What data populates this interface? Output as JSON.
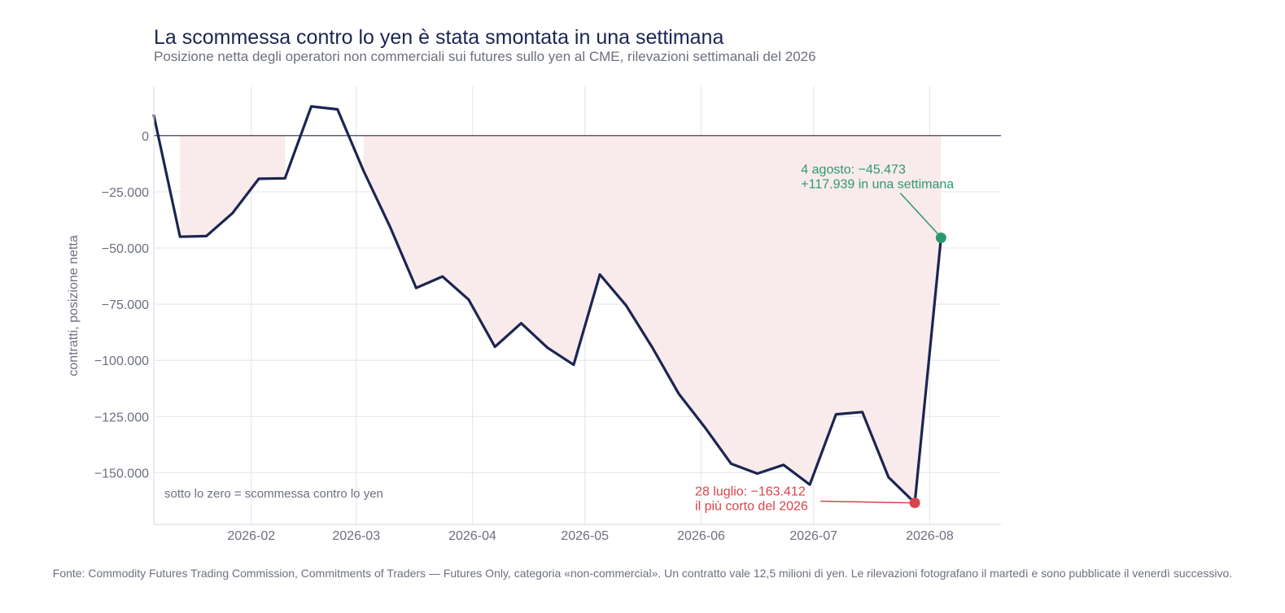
{
  "chart_data": {
    "type": "area",
    "title": "La scommessa contro lo yen è stata smontata in una settimana",
    "subtitle": "Posizione netta degli operatori non commerciali sui futures sullo yen al CME, rilevazioni settimanali del 2026",
    "ylabel": "contratti, posizione netta",
    "xlabel": "",
    "ylim": [
      -173000,
      22000
    ],
    "xlim": [
      "2026-01-06",
      "2026-08-20"
    ],
    "grid": true,
    "x_ticks": [
      "2026-02-01",
      "2026-03-01",
      "2026-04-01",
      "2026-05-01",
      "2026-06-01",
      "2026-07-01",
      "2026-08-01"
    ],
    "x_tick_labels": [
      "2026-02",
      "2026-03",
      "2026-04",
      "2026-05",
      "2026-06",
      "2026-07",
      "2026-08"
    ],
    "y_ticks": [
      0,
      -25000,
      -50000,
      -75000,
      -100000,
      -125000,
      -150000
    ],
    "y_tick_labels": [
      "0",
      "−25.000",
      "−50.000",
      "−75.000",
      "−100.000",
      "−125.000",
      "−150.000"
    ],
    "colors": {
      "line": "#1b2551",
      "fill": "#f9eaec",
      "zero_line": "#5a5f75",
      "grid": "#e6e8f0",
      "low": "#d9434b",
      "high": "#2a9a6e"
    },
    "series": [
      {
        "x": [
          "2026-01-06",
          "2026-01-13",
          "2026-01-20",
          "2026-01-27",
          "2026-02-03",
          "2026-02-10",
          "2026-02-17",
          "2026-02-24",
          "2026-03-03",
          "2026-03-10",
          "2026-03-17",
          "2026-03-24",
          "2026-03-31",
          "2026-04-07",
          "2026-04-14",
          "2026-04-21",
          "2026-04-28",
          "2026-05-05",
          "2026-05-12",
          "2026-05-19",
          "2026-05-26",
          "2026-06-02",
          "2026-06-09",
          "2026-06-16",
          "2026-06-23",
          "2026-06-30",
          "2026-07-07",
          "2026-07-14",
          "2026-07-21",
          "2026-07-28",
          "2026-08-04"
        ],
        "values": [
          9000,
          -45000,
          -44700,
          -34500,
          -19200,
          -19000,
          13000,
          11700,
          -15800,
          -40500,
          -67800,
          -62700,
          -73000,
          -94000,
          -83500,
          -94400,
          -102000,
          -61800,
          -75600,
          -94300,
          -114800,
          -129800,
          -146000,
          -150400,
          -146500,
          -155300,
          -124000,
          -123000,
          -152000,
          -163412,
          -45473
        ]
      }
    ],
    "annotations": [
      {
        "key": "low",
        "x": "2026-07-28",
        "y": -163412,
        "lines": [
          "28 luglio: −163.412",
          "il più corto del 2026"
        ]
      },
      {
        "key": "high",
        "x": "2026-08-04",
        "y": -45473,
        "lines": [
          "4 agosto: −45.473",
          "+117.939 in una settimana"
        ]
      }
    ],
    "zone_note": "sotto lo zero = scommessa contro lo yen"
  },
  "source": "Fonte: Commodity Futures Trading Commission, Commitments of Traders — Futures Only, categoria «non-commercial». Un contratto vale 12,5 milioni di yen. Le rilevazioni fotografano il martedì e sono pubblicate il venerdì successivo."
}
